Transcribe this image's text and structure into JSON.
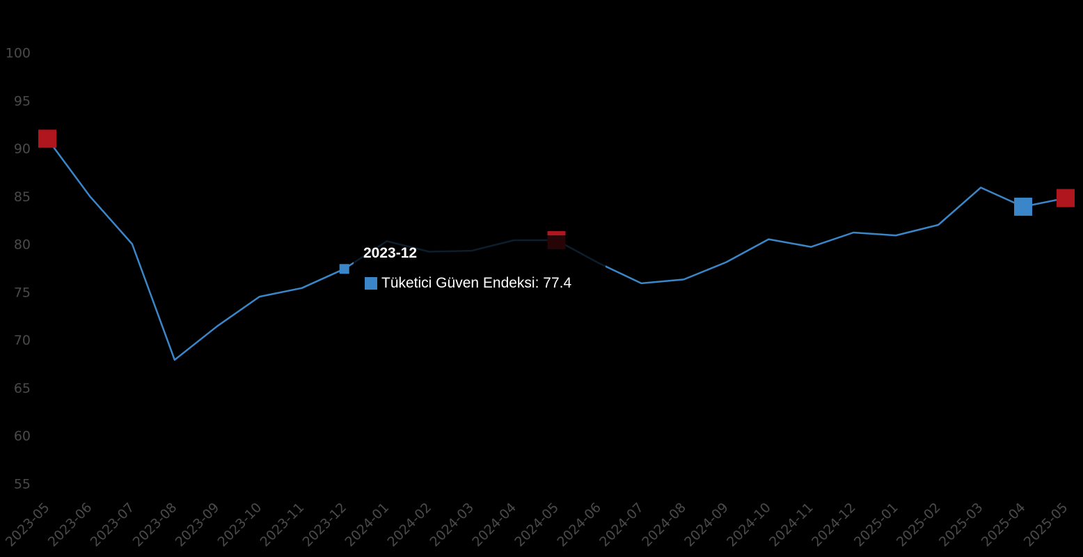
{
  "chart_data": {
    "type": "line",
    "title": "",
    "xlabel": "",
    "ylabel": "",
    "ylim": [
      52,
      103
    ],
    "yticks": [
      "100",
      "95",
      "90",
      "85",
      "80",
      "75",
      "70",
      "65",
      "60",
      "55"
    ],
    "categories": [
      "2023-05",
      "2023-06",
      "2023-07",
      "2023-08",
      "2023-09",
      "2023-10",
      "2023-11",
      "2023-12",
      "2024-01",
      "2024-02",
      "2024-03",
      "2024-04",
      "2024-05",
      "2024-06",
      "2024-07",
      "2024-08",
      "2024-09",
      "2024-10",
      "2024-11",
      "2024-12",
      "2025-01",
      "2025-02",
      "2025-03",
      "2025-04",
      "2025-05"
    ],
    "series": [
      {
        "name": "Tüketici Güven Endeksi",
        "color": "#3a86c8",
        "values": [
          91.0,
          85.0,
          80.0,
          67.9,
          71.4,
          74.5,
          75.4,
          77.4,
          80.3,
          79.2,
          79.3,
          80.4,
          80.4,
          78.0,
          75.9,
          76.3,
          78.1,
          80.5,
          79.7,
          81.2,
          80.9,
          82.0,
          85.9,
          83.9,
          84.8
        ]
      }
    ],
    "highlighted_points": [
      {
        "category": "2023-05",
        "value": 91.0,
        "color": "#b0161e"
      },
      {
        "category": "2024-05",
        "value": 80.4,
        "color": "#b0161e"
      },
      {
        "category": "2025-04",
        "value": 83.9,
        "color": "#3a86c8"
      },
      {
        "category": "2025-05",
        "value": 84.8,
        "color": "#b0161e"
      }
    ],
    "tooltip": {
      "title": "2023-12",
      "label": "Tüketici Güven Endeksi: 77.4",
      "category": "2023-12",
      "value": 77.4
    },
    "grid": false
  }
}
